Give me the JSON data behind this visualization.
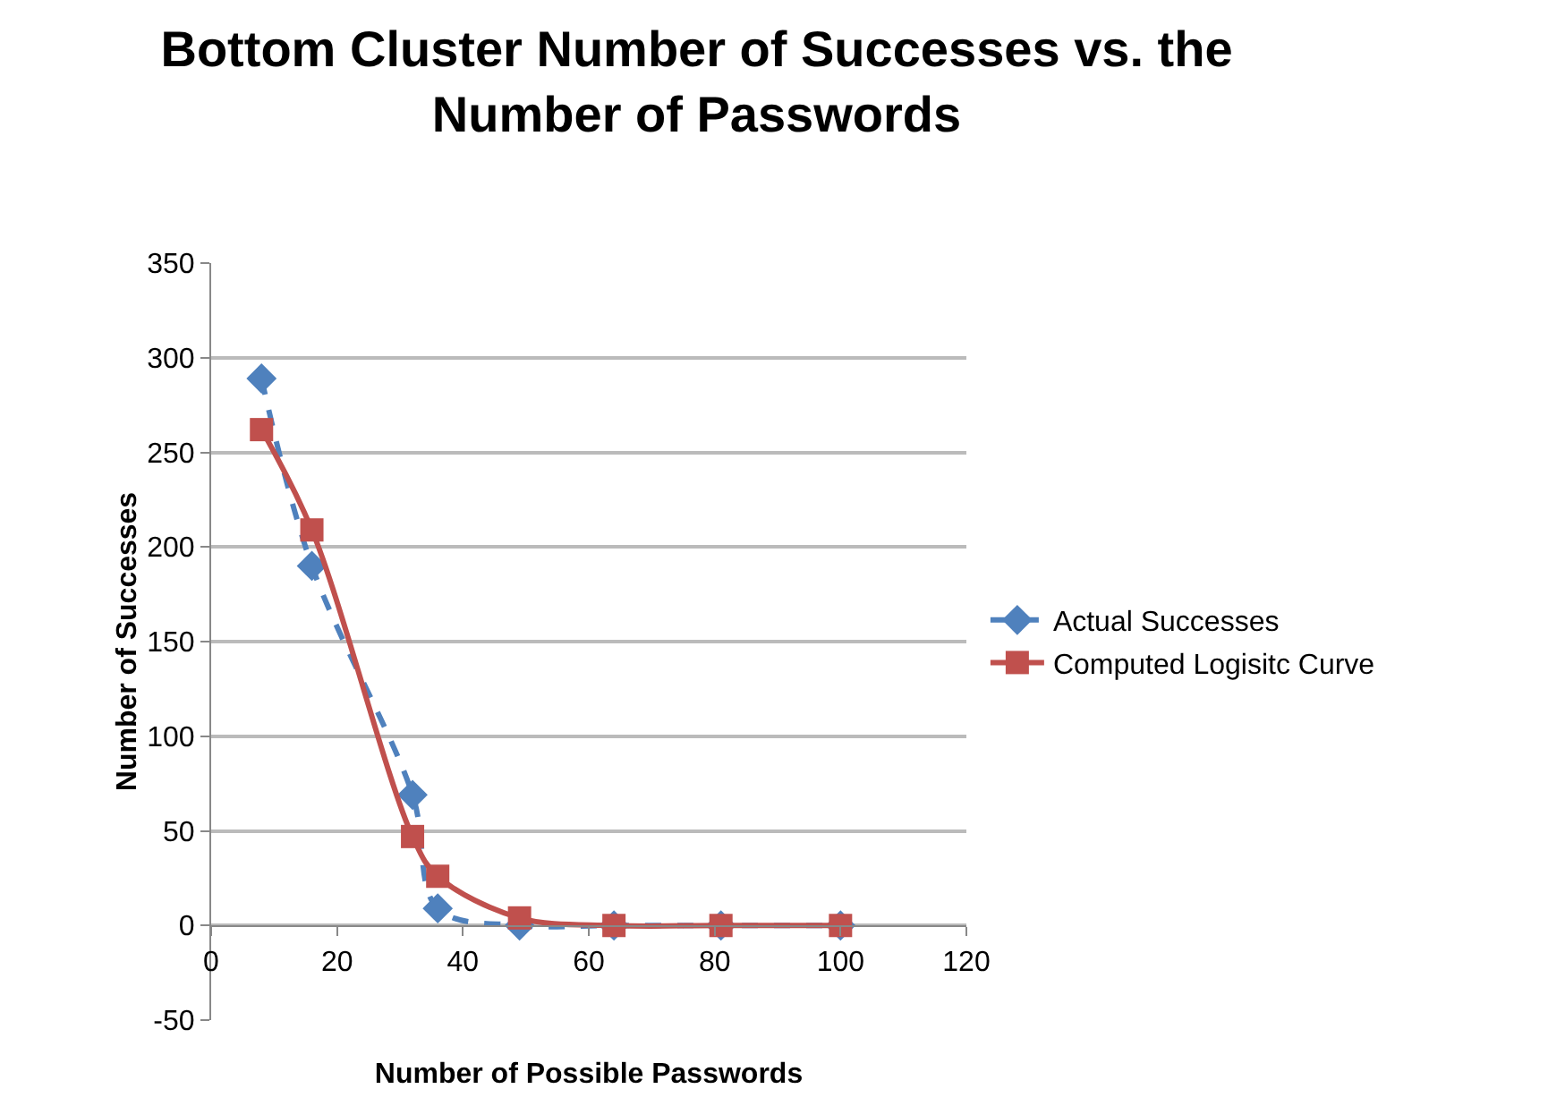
{
  "chart_data": {
    "type": "line",
    "title": "Bottom Cluster Number of Successes vs. the Number of Passwords",
    "xlabel": "Number of Possible Passwords",
    "ylabel": "Number of Successes",
    "x": [
      8,
      16,
      32,
      36,
      49,
      64,
      81,
      100
    ],
    "series": [
      {
        "name": "Actual Successes",
        "color": "#4f81bd",
        "values": [
          289,
          190,
          69,
          9,
          0,
          0,
          0,
          0
        ],
        "marker": "diamond",
        "line_style": "dashed"
      },
      {
        "name": "Computed Logisitc Curve",
        "color": "#c0504d",
        "values": [
          262,
          209,
          47,
          26,
          4,
          0,
          0,
          0
        ],
        "marker": "square",
        "line_style": "solid"
      }
    ],
    "xlim": [
      0,
      120
    ],
    "xticks": [
      0,
      20,
      40,
      60,
      80,
      100,
      120
    ],
    "ylim": [
      -50,
      350
    ],
    "yticks": [
      -50,
      0,
      50,
      100,
      150,
      200,
      250,
      300,
      350
    ],
    "grid": "y",
    "legend": "right"
  }
}
